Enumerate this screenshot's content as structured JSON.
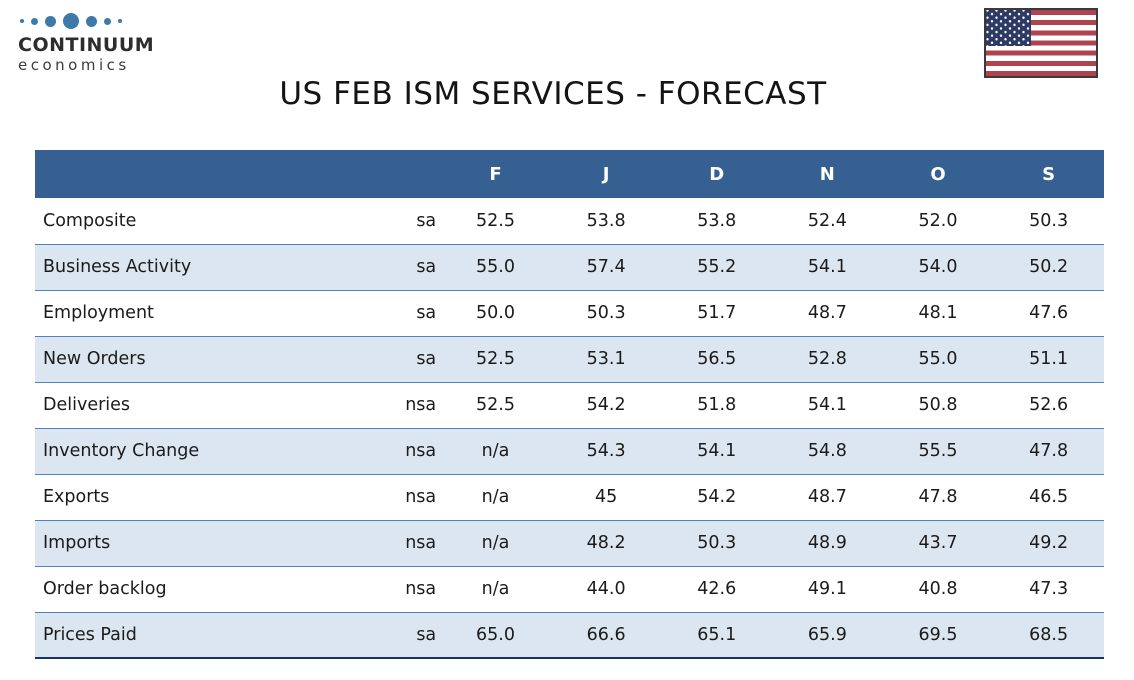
{
  "brand": {
    "name": "CONTINUUM",
    "tagline": "economics"
  },
  "page_title": "US FEB ISM SERVICES - FORECAST",
  "flag": "us-flag",
  "chart_data": {
    "type": "table",
    "title": "US FEB ISM SERVICES - FORECAST",
    "columns": [
      "F",
      "J",
      "D",
      "N",
      "O",
      "S"
    ],
    "rows": [
      {
        "label": "Composite",
        "adjustment": "sa",
        "values": [
          "52.5",
          "53.8",
          "53.8",
          "52.4",
          "52.0",
          "50.3"
        ]
      },
      {
        "label": "Business Activity",
        "adjustment": "sa",
        "values": [
          "55.0",
          "57.4",
          "55.2",
          "54.1",
          "54.0",
          "50.2"
        ]
      },
      {
        "label": "Employment",
        "adjustment": "sa",
        "values": [
          "50.0",
          "50.3",
          "51.7",
          "48.7",
          "48.1",
          "47.6"
        ]
      },
      {
        "label": "New Orders",
        "adjustment": "sa",
        "values": [
          "52.5",
          "53.1",
          "56.5",
          "52.8",
          "55.0",
          "51.1"
        ]
      },
      {
        "label": "Deliveries",
        "adjustment": "nsa",
        "values": [
          "52.5",
          "54.2",
          "51.8",
          "54.1",
          "50.8",
          "52.6"
        ]
      },
      {
        "label": "Inventory Change",
        "adjustment": "nsa",
        "values": [
          "n/a",
          "54.3",
          "54.1",
          "54.8",
          "55.5",
          "47.8"
        ]
      },
      {
        "label": "Exports",
        "adjustment": "nsa",
        "values": [
          "n/a",
          "45",
          "54.2",
          "48.7",
          "47.8",
          "46.5"
        ]
      },
      {
        "label": "Imports",
        "adjustment": "nsa",
        "values": [
          "n/a",
          "48.2",
          "50.3",
          "48.9",
          "43.7",
          "49.2"
        ]
      },
      {
        "label": "Order backlog",
        "adjustment": "nsa",
        "values": [
          "n/a",
          "44.0",
          "42.6",
          "49.1",
          "40.8",
          "47.3"
        ]
      },
      {
        "label": "Prices Paid",
        "adjustment": "sa",
        "values": [
          "65.0",
          "66.6",
          "65.1",
          "65.9",
          "69.5",
          "68.5"
        ]
      }
    ]
  },
  "colors": {
    "header_bg": "#366092",
    "row_alt_bg": "#dce6f1",
    "row_border": "#4f81bd",
    "table_bottom_border": "#17365d",
    "accent_dot": "#3d79a9",
    "flag_red": "#b04350",
    "flag_navy": "#2c3a64"
  }
}
